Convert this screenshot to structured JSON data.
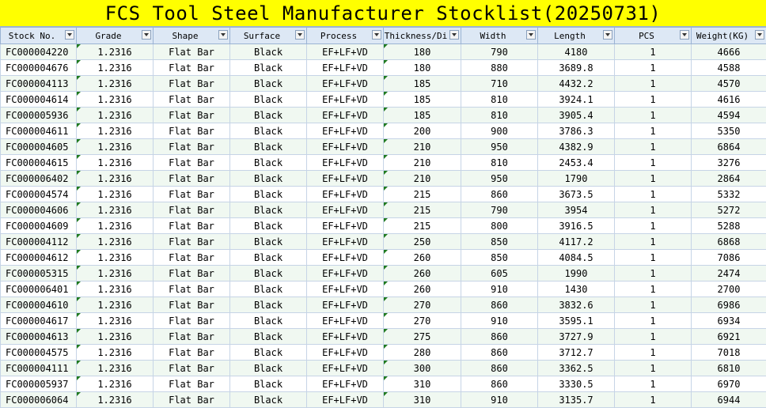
{
  "title": "FCS Tool Steel Manufacturer Stocklist(20250731)",
  "headers": [
    "Stock No.",
    "Grade",
    "Shape",
    "Surface",
    "Process",
    "Thickness/Di",
    "Width",
    "Length",
    "PCS",
    "Weight(KG)"
  ],
  "rows": [
    [
      "FC000004220",
      "1.2316",
      "Flat Bar",
      "Black",
      "EF+LF+VD",
      "180",
      "790",
      "4180",
      "1",
      "4666"
    ],
    [
      "FC000004676",
      "1.2316",
      "Flat Bar",
      "Black",
      "EF+LF+VD",
      "180",
      "880",
      "3689.8",
      "1",
      "4588"
    ],
    [
      "FC000004113",
      "1.2316",
      "Flat Bar",
      "Black",
      "EF+LF+VD",
      "185",
      "710",
      "4432.2",
      "1",
      "4570"
    ],
    [
      "FC000004614",
      "1.2316",
      "Flat Bar",
      "Black",
      "EF+LF+VD",
      "185",
      "810",
      "3924.1",
      "1",
      "4616"
    ],
    [
      "FC000005936",
      "1.2316",
      "Flat Bar",
      "Black",
      "EF+LF+VD",
      "185",
      "810",
      "3905.4",
      "1",
      "4594"
    ],
    [
      "FC000004611",
      "1.2316",
      "Flat Bar",
      "Black",
      "EF+LF+VD",
      "200",
      "900",
      "3786.3",
      "1",
      "5350"
    ],
    [
      "FC000004605",
      "1.2316",
      "Flat Bar",
      "Black",
      "EF+LF+VD",
      "210",
      "950",
      "4382.9",
      "1",
      "6864"
    ],
    [
      "FC000004615",
      "1.2316",
      "Flat Bar",
      "Black",
      "EF+LF+VD",
      "210",
      "810",
      "2453.4",
      "1",
      "3276"
    ],
    [
      "FC000006402",
      "1.2316",
      "Flat Bar",
      "Black",
      "EF+LF+VD",
      "210",
      "950",
      "1790",
      "1",
      "2864"
    ],
    [
      "FC000004574",
      "1.2316",
      "Flat Bar",
      "Black",
      "EF+LF+VD",
      "215",
      "860",
      "3673.5",
      "1",
      "5332"
    ],
    [
      "FC000004606",
      "1.2316",
      "Flat Bar",
      "Black",
      "EF+LF+VD",
      "215",
      "790",
      "3954",
      "1",
      "5272"
    ],
    [
      "FC000004609",
      "1.2316",
      "Flat Bar",
      "Black",
      "EF+LF+VD",
      "215",
      "800",
      "3916.5",
      "1",
      "5288"
    ],
    [
      "FC000004112",
      "1.2316",
      "Flat Bar",
      "Black",
      "EF+LF+VD",
      "250",
      "850",
      "4117.2",
      "1",
      "6868"
    ],
    [
      "FC000004612",
      "1.2316",
      "Flat Bar",
      "Black",
      "EF+LF+VD",
      "260",
      "850",
      "4084.5",
      "1",
      "7086"
    ],
    [
      "FC000005315",
      "1.2316",
      "Flat Bar",
      "Black",
      "EF+LF+VD",
      "260",
      "605",
      "1990",
      "1",
      "2474"
    ],
    [
      "FC000006401",
      "1.2316",
      "Flat Bar",
      "Black",
      "EF+LF+VD",
      "260",
      "910",
      "1430",
      "1",
      "2700"
    ],
    [
      "FC000004610",
      "1.2316",
      "Flat Bar",
      "Black",
      "EF+LF+VD",
      "270",
      "860",
      "3832.6",
      "1",
      "6986"
    ],
    [
      "FC000004617",
      "1.2316",
      "Flat Bar",
      "Black",
      "EF+LF+VD",
      "270",
      "910",
      "3595.1",
      "1",
      "6934"
    ],
    [
      "FC000004613",
      "1.2316",
      "Flat Bar",
      "Black",
      "EF+LF+VD",
      "275",
      "860",
      "3727.9",
      "1",
      "6921"
    ],
    [
      "FC000004575",
      "1.2316",
      "Flat Bar",
      "Black",
      "EF+LF+VD",
      "280",
      "860",
      "3712.7",
      "1",
      "7018"
    ],
    [
      "FC000004111",
      "1.2316",
      "Flat Bar",
      "Black",
      "EF+LF+VD",
      "300",
      "860",
      "3362.5",
      "1",
      "6810"
    ],
    [
      "FC000005937",
      "1.2316",
      "Flat Bar",
      "Black",
      "EF+LF+VD",
      "310",
      "860",
      "3330.5",
      "1",
      "6970"
    ],
    [
      "FC000006064",
      "1.2316",
      "Flat Bar",
      "Black",
      "EF+LF+VD",
      "310",
      "910",
      "3135.7",
      "1",
      "6944"
    ]
  ],
  "colors": {
    "title_bg": "#ffff00",
    "header_bg": "#dde8f5",
    "row_alt": "#f0f8f1",
    "grid": "#c6d4e6",
    "cell_marker": "#1f7a1f"
  },
  "icons": {
    "filter": "filter-dropdown-icon"
  }
}
